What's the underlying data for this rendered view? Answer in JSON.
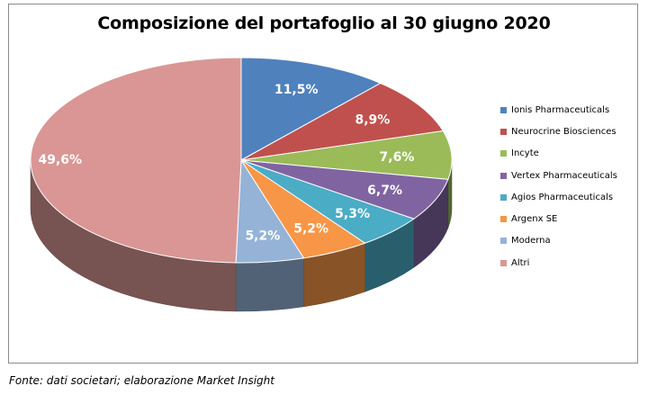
{
  "chart_data": {
    "type": "pie",
    "style": "3d",
    "title": "Composizione del portafoglio al 30 giugno 2020",
    "categories": [
      "Ionis Pharmaceuticals",
      "Neurocrine Biosciences",
      "Incyte",
      "Vertex Pharmaceuticals",
      "Agios Pharmaceuticals",
      "Argenx SE",
      "Moderna",
      "Altri"
    ],
    "values": [
      11.5,
      8.9,
      7.6,
      6.7,
      5.3,
      5.2,
      5.2,
      49.6
    ],
    "labels": [
      "11,5%",
      "8,9%",
      "7,6%",
      "6,7%",
      "5,3%",
      "5,2%",
      "5,2%",
      "49,6%"
    ],
    "colors": [
      "#4F81BD",
      "#C0504D",
      "#9BBB59",
      "#8064A2",
      "#4BACC6",
      "#F79646",
      "#95B3D7",
      "#D99694"
    ],
    "legend_position": "right"
  },
  "source_note": "Fonte: dati societari; elaborazione Market Insight"
}
